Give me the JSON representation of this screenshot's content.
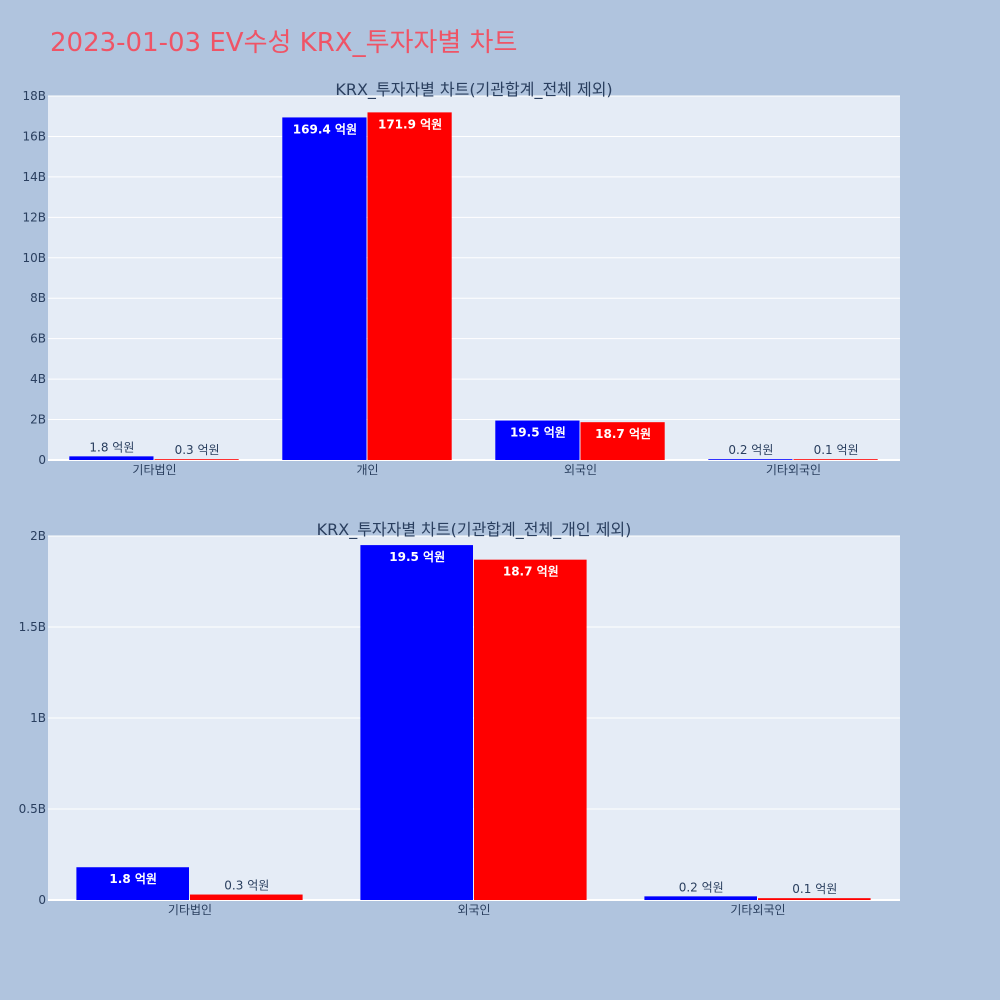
{
  "page": {
    "title": "2023-01-03 EV수성 KRX_투자자별 차트"
  },
  "colors": {
    "background": "#b0c4de",
    "plot_bg": "#e5ecf6",
    "series_a": "#0000ff",
    "series_b": "#ff0000",
    "title": "#ef5466"
  },
  "chart_data": [
    {
      "type": "bar",
      "title": "KRX_투자자별 차트(기관합계_전체 제외)",
      "categories": [
        "기타법인",
        "개인",
        "외국인",
        "기타외국인"
      ],
      "series": [
        {
          "values": [
            0.18,
            16.94,
            1.95,
            0.02
          ],
          "labels": [
            "1.8 억원",
            "169.4 억원",
            "19.5 억원",
            "0.2 억원"
          ],
          "color": "#0000ff"
        },
        {
          "values": [
            0.03,
            17.19,
            1.87,
            0.01
          ],
          "labels": [
            "0.3 억원",
            "171.9 억원",
            "18.7 억원",
            "0.1 억원"
          ],
          "color": "#ff0000"
        }
      ],
      "ylim": [
        0,
        18
      ],
      "yticks": [
        0,
        2,
        4,
        6,
        8,
        10,
        12,
        14,
        16,
        18
      ],
      "ytick_labels": [
        "0",
        "2B",
        "4B",
        "6B",
        "8B",
        "10B",
        "12B",
        "14B",
        "16B",
        "18B"
      ],
      "grid": true
    },
    {
      "type": "bar",
      "title": "KRX_투자자별 차트(기관합계_전체_개인 제외)",
      "categories": [
        "기타법인",
        "외국인",
        "기타외국인"
      ],
      "series": [
        {
          "values": [
            0.18,
            1.95,
            0.02
          ],
          "labels": [
            "1.8 억원",
            "19.5 억원",
            "0.2 억원"
          ],
          "color": "#0000ff"
        },
        {
          "values": [
            0.03,
            1.87,
            0.01
          ],
          "labels": [
            "0.3 억원",
            "18.7 억원",
            "0.1 억원"
          ],
          "color": "#ff0000"
        }
      ],
      "ylim": [
        0,
        2
      ],
      "yticks": [
        0,
        0.5,
        1,
        1.5,
        2
      ],
      "ytick_labels": [
        "0",
        "0.5B",
        "1B",
        "1.5B",
        "2B"
      ],
      "grid": true
    }
  ]
}
